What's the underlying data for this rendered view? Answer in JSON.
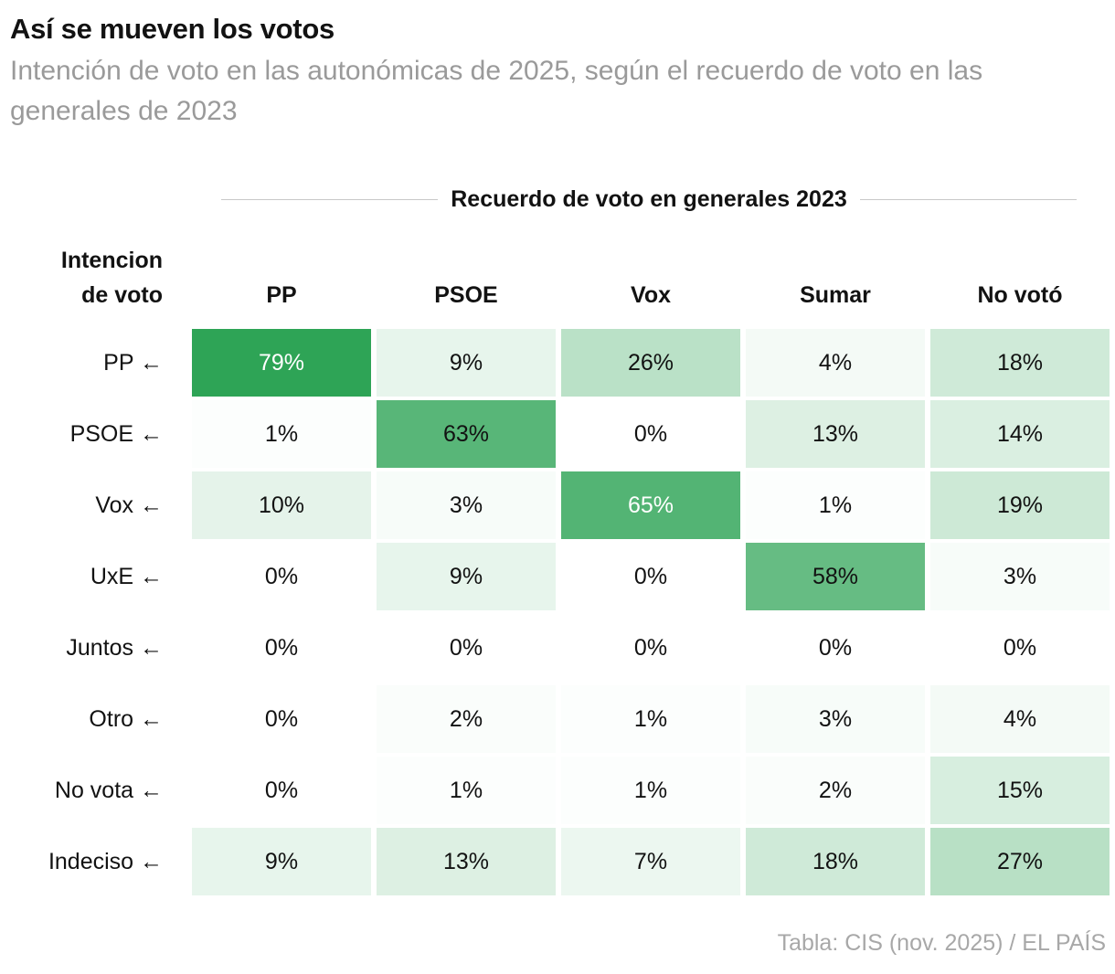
{
  "title": "Así se mueven los votos",
  "subtitle": "Intención de voto en las autonómicas de 2025, según el recuerdo de voto en las generales de 2023",
  "source": "Tabla: CIS (nov. 2025) / EL PAÍS",
  "corner_line1": "Intencion",
  "corner_line2": "de voto",
  "chart_data": {
    "type": "table",
    "title": "Así se mueven los votos",
    "subtitle": "Intención de voto en las autonómicas de 2025, según el recuerdo de voto en las generales de 2023",
    "column_group_label": "Recuerdo de voto en generales 2023",
    "row_header_label": "Intencion de voto",
    "columns": [
      "PP",
      "PSOE",
      "Vox",
      "Sumar",
      "No votó"
    ],
    "rows": [
      "PP",
      "PSOE",
      "Vox",
      "UxE",
      "Juntos",
      "Otro",
      "No vota",
      "Indeciso"
    ],
    "row_arrow": "←",
    "values": [
      [
        79,
        9,
        26,
        4,
        18
      ],
      [
        1,
        63,
        0,
        13,
        14
      ],
      [
        10,
        3,
        65,
        1,
        19
      ],
      [
        0,
        9,
        0,
        58,
        3
      ],
      [
        0,
        0,
        0,
        0,
        0
      ],
      [
        0,
        2,
        1,
        3,
        4
      ],
      [
        0,
        1,
        1,
        2,
        15
      ],
      [
        9,
        13,
        7,
        18,
        27
      ]
    ],
    "unit": "%",
    "colors": {
      "high": "#2ea456",
      "low": "#ffffff",
      "text_dark": "#121212",
      "text_light": "#ffffff"
    }
  }
}
